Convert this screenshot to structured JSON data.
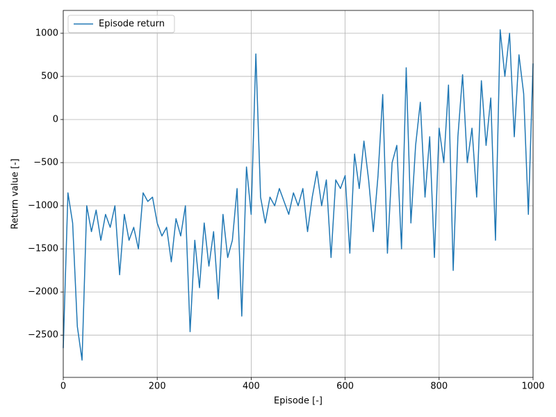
{
  "chart_data": {
    "type": "line",
    "xlabel": "Episode [-]",
    "ylabel": "Return value [-]",
    "x": [
      0,
      10,
      20,
      30,
      40,
      50,
      60,
      70,
      80,
      90,
      100,
      110,
      120,
      130,
      140,
      150,
      160,
      170,
      180,
      190,
      200,
      210,
      220,
      230,
      240,
      250,
      260,
      270,
      280,
      290,
      300,
      310,
      320,
      330,
      340,
      350,
      360,
      370,
      380,
      390,
      400,
      410,
      420,
      430,
      440,
      450,
      460,
      470,
      480,
      490,
      500,
      510,
      520,
      530,
      540,
      550,
      560,
      570,
      580,
      590,
      600,
      610,
      620,
      630,
      640,
      650,
      660,
      670,
      680,
      690,
      700,
      710,
      720,
      730,
      740,
      750,
      760,
      770,
      780,
      790,
      800,
      810,
      820,
      830,
      840,
      850,
      860,
      870,
      880,
      890,
      900,
      910,
      920,
      930,
      940,
      950,
      960,
      970,
      980,
      990,
      1000
    ],
    "series": [
      {
        "name": "Episode return",
        "color": "#1f77b4",
        "values": [
          -2650,
          -850,
          -1200,
          -2400,
          -2790,
          -1000,
          -1300,
          -1050,
          -1400,
          -1100,
          -1250,
          -1000,
          -1800,
          -1100,
          -1400,
          -1250,
          -1500,
          -850,
          -950,
          -900,
          -1200,
          -1350,
          -1250,
          -1650,
          -1150,
          -1350,
          -1000,
          -2460,
          -1400,
          -1950,
          -1200,
          -1700,
          -1300,
          -2080,
          -1100,
          -1600,
          -1400,
          -800,
          -2280,
          -550,
          -1100,
          760,
          -900,
          -1200,
          -900,
          -1000,
          -800,
          -950,
          -1100,
          -850,
          -1000,
          -800,
          -1300,
          -900,
          -600,
          -1000,
          -700,
          -1600,
          -700,
          -800,
          -650,
          -1550,
          -400,
          -800,
          -250,
          -700,
          -1300,
          -650,
          290,
          -1550,
          -500,
          -300,
          -1500,
          600,
          -1200,
          -300,
          200,
          -900,
          -200,
          -1600,
          -100,
          -500,
          400,
          -1750,
          -200,
          520,
          -500,
          -100,
          -900,
          450,
          -300,
          250,
          -1400,
          1040,
          500,
          1000,
          -200,
          750,
          300,
          -1100,
          650
        ]
      }
    ],
    "xlim": [
      0,
      1000
    ],
    "xticks": [
      0,
      200,
      400,
      600,
      800,
      1000
    ],
    "ylim": [
      -2990,
      1265
    ],
    "yticks": [
      {
        "value": -2500,
        "label": "−2500"
      },
      {
        "value": -2000,
        "label": "−2000"
      },
      {
        "value": -1500,
        "label": "−1500"
      },
      {
        "value": -1000,
        "label": "−1000"
      },
      {
        "value": -500,
        "label": "−500"
      },
      0,
      500,
      1000
    ],
    "grid": true,
    "legend": "upper left"
  }
}
